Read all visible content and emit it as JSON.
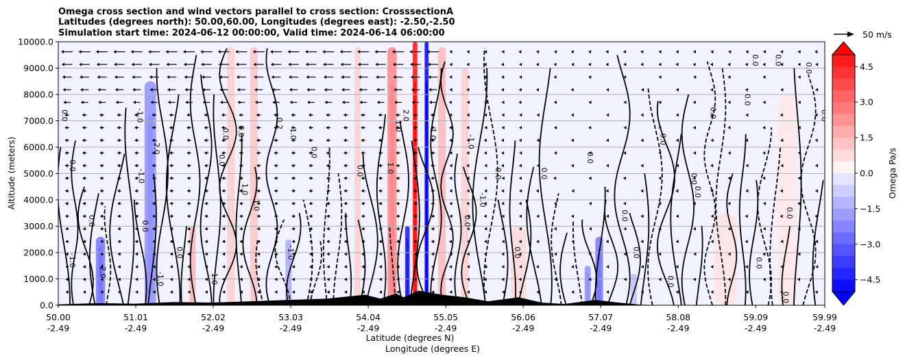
{
  "chart_data": {
    "type": "heatmap",
    "title_lines": [
      "Omega cross section and wind vectors parallel to cross section: CrosssectionA",
      "Latitudes (degrees north): 50.00,60.00, Longitudes (degrees east): -2.50,-2.50",
      "Simulation start time: 2024-06-12 00:00:00, Valid time: 2024-06-14 06:00:00"
    ],
    "ylabel": "Altitude (meters)",
    "xlabel_lat": "Latitude (degrees N)",
    "xlabel_lon": "Longitude (degrees E)",
    "ylim": [
      0,
      10000
    ],
    "xlim": [
      50.0,
      59.99
    ],
    "y_ticks": [
      {
        "value": 0,
        "label": "0.0"
      },
      {
        "value": 1000,
        "label": "1000.0"
      },
      {
        "value": 2000,
        "label": "2000.0"
      },
      {
        "value": 3000,
        "label": "3000.0"
      },
      {
        "value": 4000,
        "label": "4000.0"
      },
      {
        "value": 5000,
        "label": "5000.0"
      },
      {
        "value": 6000,
        "label": "6000.0"
      },
      {
        "value": 7000,
        "label": "7000.0"
      },
      {
        "value": 8000,
        "label": "8000.0"
      },
      {
        "value": 9000,
        "label": "9000.0"
      },
      {
        "value": 10000,
        "label": "10000.0"
      }
    ],
    "x_ticks": [
      {
        "lat": 50.0,
        "lat_label": "50.00",
        "lon_label": "-2.49"
      },
      {
        "lat": 51.01,
        "lat_label": "51.01",
        "lon_label": "-2.49"
      },
      {
        "lat": 52.02,
        "lat_label": "52.02",
        "lon_label": "-2.49"
      },
      {
        "lat": 53.03,
        "lat_label": "53.03",
        "lon_label": "-2.49"
      },
      {
        "lat": 54.04,
        "lat_label": "54.04",
        "lon_label": "-2.49"
      },
      {
        "lat": 55.05,
        "lat_label": "55.05",
        "lon_label": "-2.49"
      },
      {
        "lat": 56.06,
        "lat_label": "56.06",
        "lon_label": "-2.49"
      },
      {
        "lat": 57.07,
        "lat_label": "57.07",
        "lon_label": "-2.49"
      },
      {
        "lat": 58.08,
        "lat_label": "58.08",
        "lon_label": "-2.49"
      },
      {
        "lat": 59.09,
        "lat_label": "59.09",
        "lon_label": "-2.49"
      },
      {
        "lat": 59.99,
        "lat_label": "59.99",
        "lon_label": "-2.49"
      }
    ],
    "grid": "horizontal",
    "colorbar": {
      "label": "Omega Pa/s",
      "range": [
        -5.0,
        5.0
      ],
      "ticks": [
        {
          "value": 4.5,
          "label": "4.5"
        },
        {
          "value": 3.0,
          "label": "3.0"
        },
        {
          "value": 1.5,
          "label": "1.5"
        },
        {
          "value": 0.0,
          "label": "0.0"
        },
        {
          "value": -1.5,
          "label": "−1.5"
        },
        {
          "value": -3.0,
          "label": "−3.0"
        },
        {
          "value": -4.5,
          "label": "−4.5"
        }
      ],
      "extend": "both",
      "low_color": "#0000ff",
      "high_color": "#ff0000"
    },
    "quiver_key": {
      "label": "50 m/s",
      "speed": 50
    },
    "omega_features": [
      {
        "lat": 50.55,
        "alt_top": 2600,
        "omega": -2.5,
        "width_deg": 0.12
      },
      {
        "lat": 51.2,
        "alt_top": 8500,
        "omega": -2.0,
        "width_deg": 0.15
      },
      {
        "lat": 51.75,
        "alt_top": 3000,
        "omega": 1.5,
        "width_deg": 0.08
      },
      {
        "lat": 52.25,
        "alt_top": 9800,
        "omega": 1.0,
        "width_deg": 0.1
      },
      {
        "lat": 52.55,
        "alt_top": 9800,
        "omega": 1.2,
        "width_deg": 0.1
      },
      {
        "lat": 53.0,
        "alt_top": 2500,
        "omega": -1.5,
        "width_deg": 0.08
      },
      {
        "lat": 53.9,
        "alt_top": 9800,
        "omega": 1.0,
        "width_deg": 0.08
      },
      {
        "lat": 54.35,
        "alt_top": 9800,
        "omega": 2.5,
        "width_deg": 0.12
      },
      {
        "lat": 54.55,
        "alt_top": 3000,
        "omega": -4.5,
        "width_deg": 0.06
      },
      {
        "lat": 54.65,
        "alt_top": 10000,
        "omega": 5.0,
        "width_deg": 0.06
      },
      {
        "lat": 54.8,
        "alt_top": 10000,
        "omega": -5.0,
        "width_deg": 0.05
      },
      {
        "lat": 55.0,
        "alt_top": 9800,
        "omega": 1.5,
        "width_deg": 0.1
      },
      {
        "lat": 55.3,
        "alt_top": 9000,
        "omega": 1.0,
        "width_deg": 0.1
      },
      {
        "lat": 56.0,
        "alt_top": 3000,
        "omega": 0.8,
        "width_deg": 0.2
      },
      {
        "lat": 56.9,
        "alt_top": 1500,
        "omega": -2.0,
        "width_deg": 0.08
      },
      {
        "lat": 57.05,
        "alt_top": 2600,
        "omega": -2.5,
        "width_deg": 0.1
      },
      {
        "lat": 57.5,
        "alt_top": 1200,
        "omega": -1.0,
        "width_deg": 0.08
      },
      {
        "lat": 58.7,
        "alt_top": 3500,
        "omega": 0.6,
        "width_deg": 0.3
      },
      {
        "lat": 59.5,
        "alt_top": 8000,
        "omega": 0.5,
        "width_deg": 0.25
      }
    ],
    "contour_labels": [
      {
        "lat": 51.25,
        "alt": 6000,
        "text": "-2.0"
      },
      {
        "lat": 51.03,
        "alt": 7200,
        "text": "-1.0"
      },
      {
        "lat": 50.15,
        "alt": 5300,
        "text": "0.0"
      },
      {
        "lat": 50.05,
        "alt": 7200,
        "text": "0.0"
      },
      {
        "lat": 51.05,
        "alt": 4900,
        "text": "-1.0"
      },
      {
        "lat": 50.4,
        "alt": 3200,
        "text": "0.0"
      },
      {
        "lat": 50.15,
        "alt": 1700,
        "text": "-1.0"
      },
      {
        "lat": 50.55,
        "alt": 1300,
        "text": "-2.0"
      },
      {
        "lat": 51.1,
        "alt": 3000,
        "text": "0.0"
      },
      {
        "lat": 51.3,
        "alt": 1000,
        "text": "-1.0"
      },
      {
        "lat": 51.55,
        "alt": 2000,
        "text": "0.0"
      },
      {
        "lat": 52.0,
        "alt": 1000,
        "text": "1.0"
      },
      {
        "lat": 52.1,
        "alt": 5500,
        "text": "0.0"
      },
      {
        "lat": 52.15,
        "alt": 6500,
        "text": "0.0"
      },
      {
        "lat": 52.35,
        "alt": 6600,
        "text": "0.0"
      },
      {
        "lat": 52.55,
        "alt": 3800,
        "text": "1.0"
      },
      {
        "lat": 52.4,
        "alt": 4400,
        "text": "1.0"
      },
      {
        "lat": 53.03,
        "alt": 6500,
        "text": "1.0"
      },
      {
        "lat": 52.85,
        "alt": 6900,
        "text": "0.2"
      },
      {
        "lat": 53.3,
        "alt": 5800,
        "text": "0.0"
      },
      {
        "lat": 53.0,
        "alt": 2000,
        "text": "-1.0"
      },
      {
        "lat": 53.9,
        "alt": 5100,
        "text": "0.0"
      },
      {
        "lat": 54.3,
        "alt": 5200,
        "text": "1.0"
      },
      {
        "lat": 54.4,
        "alt": 6800,
        "text": "1.0"
      },
      {
        "lat": 54.5,
        "alt": 7200,
        "text": "2.0"
      },
      {
        "lat": 54.85,
        "alt": 6500,
        "text": "1.0"
      },
      {
        "lat": 55.35,
        "alt": 6200,
        "text": "-1.0"
      },
      {
        "lat": 55.3,
        "alt": 3200,
        "text": "0.0"
      },
      {
        "lat": 55.5,
        "alt": 4000,
        "text": "-1.0"
      },
      {
        "lat": 55.7,
        "alt": 5000,
        "text": "0.0"
      },
      {
        "lat": 55.95,
        "alt": 2000,
        "text": "0.0"
      },
      {
        "lat": 56.3,
        "alt": 5000,
        "text": "0.0"
      },
      {
        "lat": 56.9,
        "alt": 5600,
        "text": "0.0"
      },
      {
        "lat": 57.35,
        "alt": 3400,
        "text": "0.0"
      },
      {
        "lat": 57.5,
        "alt": 2000,
        "text": "0.0"
      },
      {
        "lat": 57.85,
        "alt": 6300,
        "text": "0.0"
      },
      {
        "lat": 58.25,
        "alt": 4800,
        "text": "0.0"
      },
      {
        "lat": 58.3,
        "alt": 4300,
        "text": "0.0"
      },
      {
        "lat": 58.5,
        "alt": 7300,
        "text": "0.0"
      },
      {
        "lat": 58.95,
        "alt": 7800,
        "text": "0.0"
      },
      {
        "lat": 59.05,
        "alt": 9300,
        "text": "0.0"
      },
      {
        "lat": 59.35,
        "alt": 9300,
        "text": "0.0"
      },
      {
        "lat": 59.5,
        "alt": 3500,
        "text": "0.0"
      },
      {
        "lat": 59.75,
        "alt": 9000,
        "text": "0.0"
      },
      {
        "lat": 59.95,
        "alt": 7200,
        "text": "0.0"
      },
      {
        "lat": 59.45,
        "alt": 300,
        "text": "0.0"
      },
      {
        "lat": 59.1,
        "alt": 1600,
        "text": "0.0"
      },
      {
        "lat": 57.95,
        "alt": 900,
        "text": "0.0"
      }
    ],
    "terrain": [
      {
        "lat": 50.0,
        "alt": 30
      },
      {
        "lat": 50.5,
        "alt": 80
      },
      {
        "lat": 51.0,
        "alt": 60
      },
      {
        "lat": 51.5,
        "alt": 120
      },
      {
        "lat": 52.0,
        "alt": 100
      },
      {
        "lat": 52.5,
        "alt": 150
      },
      {
        "lat": 53.0,
        "alt": 200
      },
      {
        "lat": 53.5,
        "alt": 250
      },
      {
        "lat": 54.0,
        "alt": 400
      },
      {
        "lat": 54.2,
        "alt": 250
      },
      {
        "lat": 54.4,
        "alt": 450
      },
      {
        "lat": 54.5,
        "alt": 300
      },
      {
        "lat": 54.7,
        "alt": 550
      },
      {
        "lat": 55.0,
        "alt": 400
      },
      {
        "lat": 55.3,
        "alt": 300
      },
      {
        "lat": 55.6,
        "alt": 150
      },
      {
        "lat": 56.0,
        "alt": 300
      },
      {
        "lat": 56.3,
        "alt": 100
      },
      {
        "lat": 56.6,
        "alt": 50
      },
      {
        "lat": 57.0,
        "alt": 200
      },
      {
        "lat": 57.3,
        "alt": 100
      },
      {
        "lat": 57.6,
        "alt": 20
      },
      {
        "lat": 58.0,
        "alt": 0
      },
      {
        "lat": 59.99,
        "alt": 0
      }
    ]
  }
}
